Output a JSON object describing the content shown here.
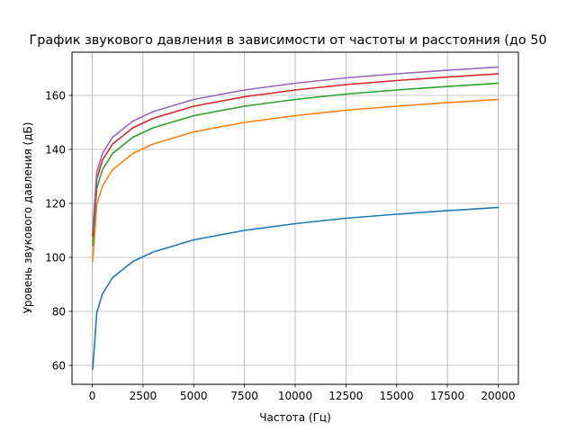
{
  "chart_data": {
    "type": "line",
    "title": "График звукового давления в зависимости от частоты и расстояния (до 50",
    "xlabel": "Частота (Гц)",
    "ylabel": "Уровень звукового давления (дБ)",
    "xlim": [
      -1000,
      21000
    ],
    "ylim": [
      53,
      176
    ],
    "grid": true,
    "legend": "none",
    "xticks": [
      0,
      2500,
      5000,
      7500,
      10000,
      12500,
      15000,
      17500,
      20000
    ],
    "yticks": [
      60,
      80,
      100,
      120,
      140,
      160
    ],
    "series": [
      {
        "color": "#1f77b4",
        "x": [
          20,
          220,
          500,
          1000,
          2000,
          3000,
          5000,
          7500,
          10000,
          12500,
          15000,
          17500,
          20000
        ],
        "values": [
          58.5,
          79.5,
          86.5,
          92.5,
          98.5,
          102.0,
          106.5,
          110.0,
          112.5,
          114.5,
          116.0,
          117.3,
          118.5
        ]
      },
      {
        "color": "#ff7f0e",
        "x": [
          20,
          220,
          500,
          1000,
          2000,
          3000,
          5000,
          7500,
          10000,
          12500,
          15000,
          17500,
          20000
        ],
        "values": [
          98.5,
          119.5,
          126.5,
          132.5,
          138.5,
          142.0,
          146.5,
          150.0,
          152.5,
          154.5,
          156.0,
          157.3,
          158.5
        ]
      },
      {
        "color": "#2ca02c",
        "x": [
          20,
          220,
          500,
          1000,
          2000,
          3000,
          5000,
          7500,
          10000,
          12500,
          15000,
          17500,
          20000
        ],
        "values": [
          104.5,
          125.5,
          132.5,
          138.5,
          144.5,
          148.0,
          152.5,
          156.0,
          158.5,
          160.5,
          162.0,
          163.3,
          164.5
        ]
      },
      {
        "color": "#d62728",
        "x": [
          20,
          220,
          500,
          1000,
          2000,
          3000,
          5000,
          7500,
          10000,
          12500,
          15000,
          17500,
          20000
        ],
        "values": [
          108.0,
          129.0,
          136.0,
          142.0,
          148.0,
          151.5,
          156.0,
          159.5,
          162.0,
          164.0,
          165.5,
          166.8,
          168.0
        ]
      },
      {
        "color": "#9467bd",
        "x": [
          20,
          220,
          500,
          1000,
          2000,
          3000,
          5000,
          7500,
          10000,
          12500,
          15000,
          17500,
          20000
        ],
        "values": [
          110.5,
          131.5,
          138.5,
          144.5,
          150.5,
          154.0,
          158.5,
          162.0,
          164.5,
          166.5,
          168.0,
          169.3,
          170.5
        ]
      }
    ]
  }
}
